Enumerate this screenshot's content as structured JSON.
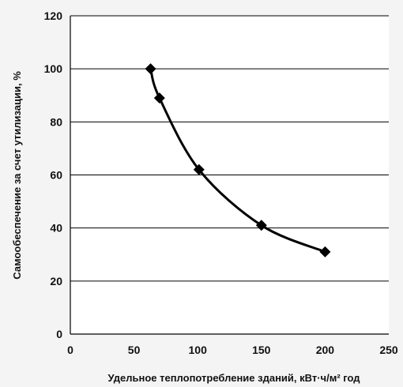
{
  "chart_data": {
    "type": "line",
    "xlabel": "Удельное теплопотребление зданий, кВт·ч/м² год",
    "ylabel": "Самообеспечение за счет утилизации, %",
    "xlim": [
      0,
      250
    ],
    "ylim": [
      0,
      120
    ],
    "x_ticks": [
      "0",
      "50",
      "100",
      "150",
      "200",
      "250"
    ],
    "y_ticks": [
      "0",
      "20",
      "40",
      "60",
      "80",
      "100",
      "120"
    ],
    "grid": "horizontal",
    "series": [
      {
        "x": [
          63,
          70,
          101,
          150,
          200
        ],
        "y": [
          100,
          89,
          62,
          41,
          31
        ]
      }
    ],
    "colors": {
      "line": "#000000",
      "marker": "#000000",
      "grid": "#000000",
      "background": "#ffffff"
    }
  }
}
